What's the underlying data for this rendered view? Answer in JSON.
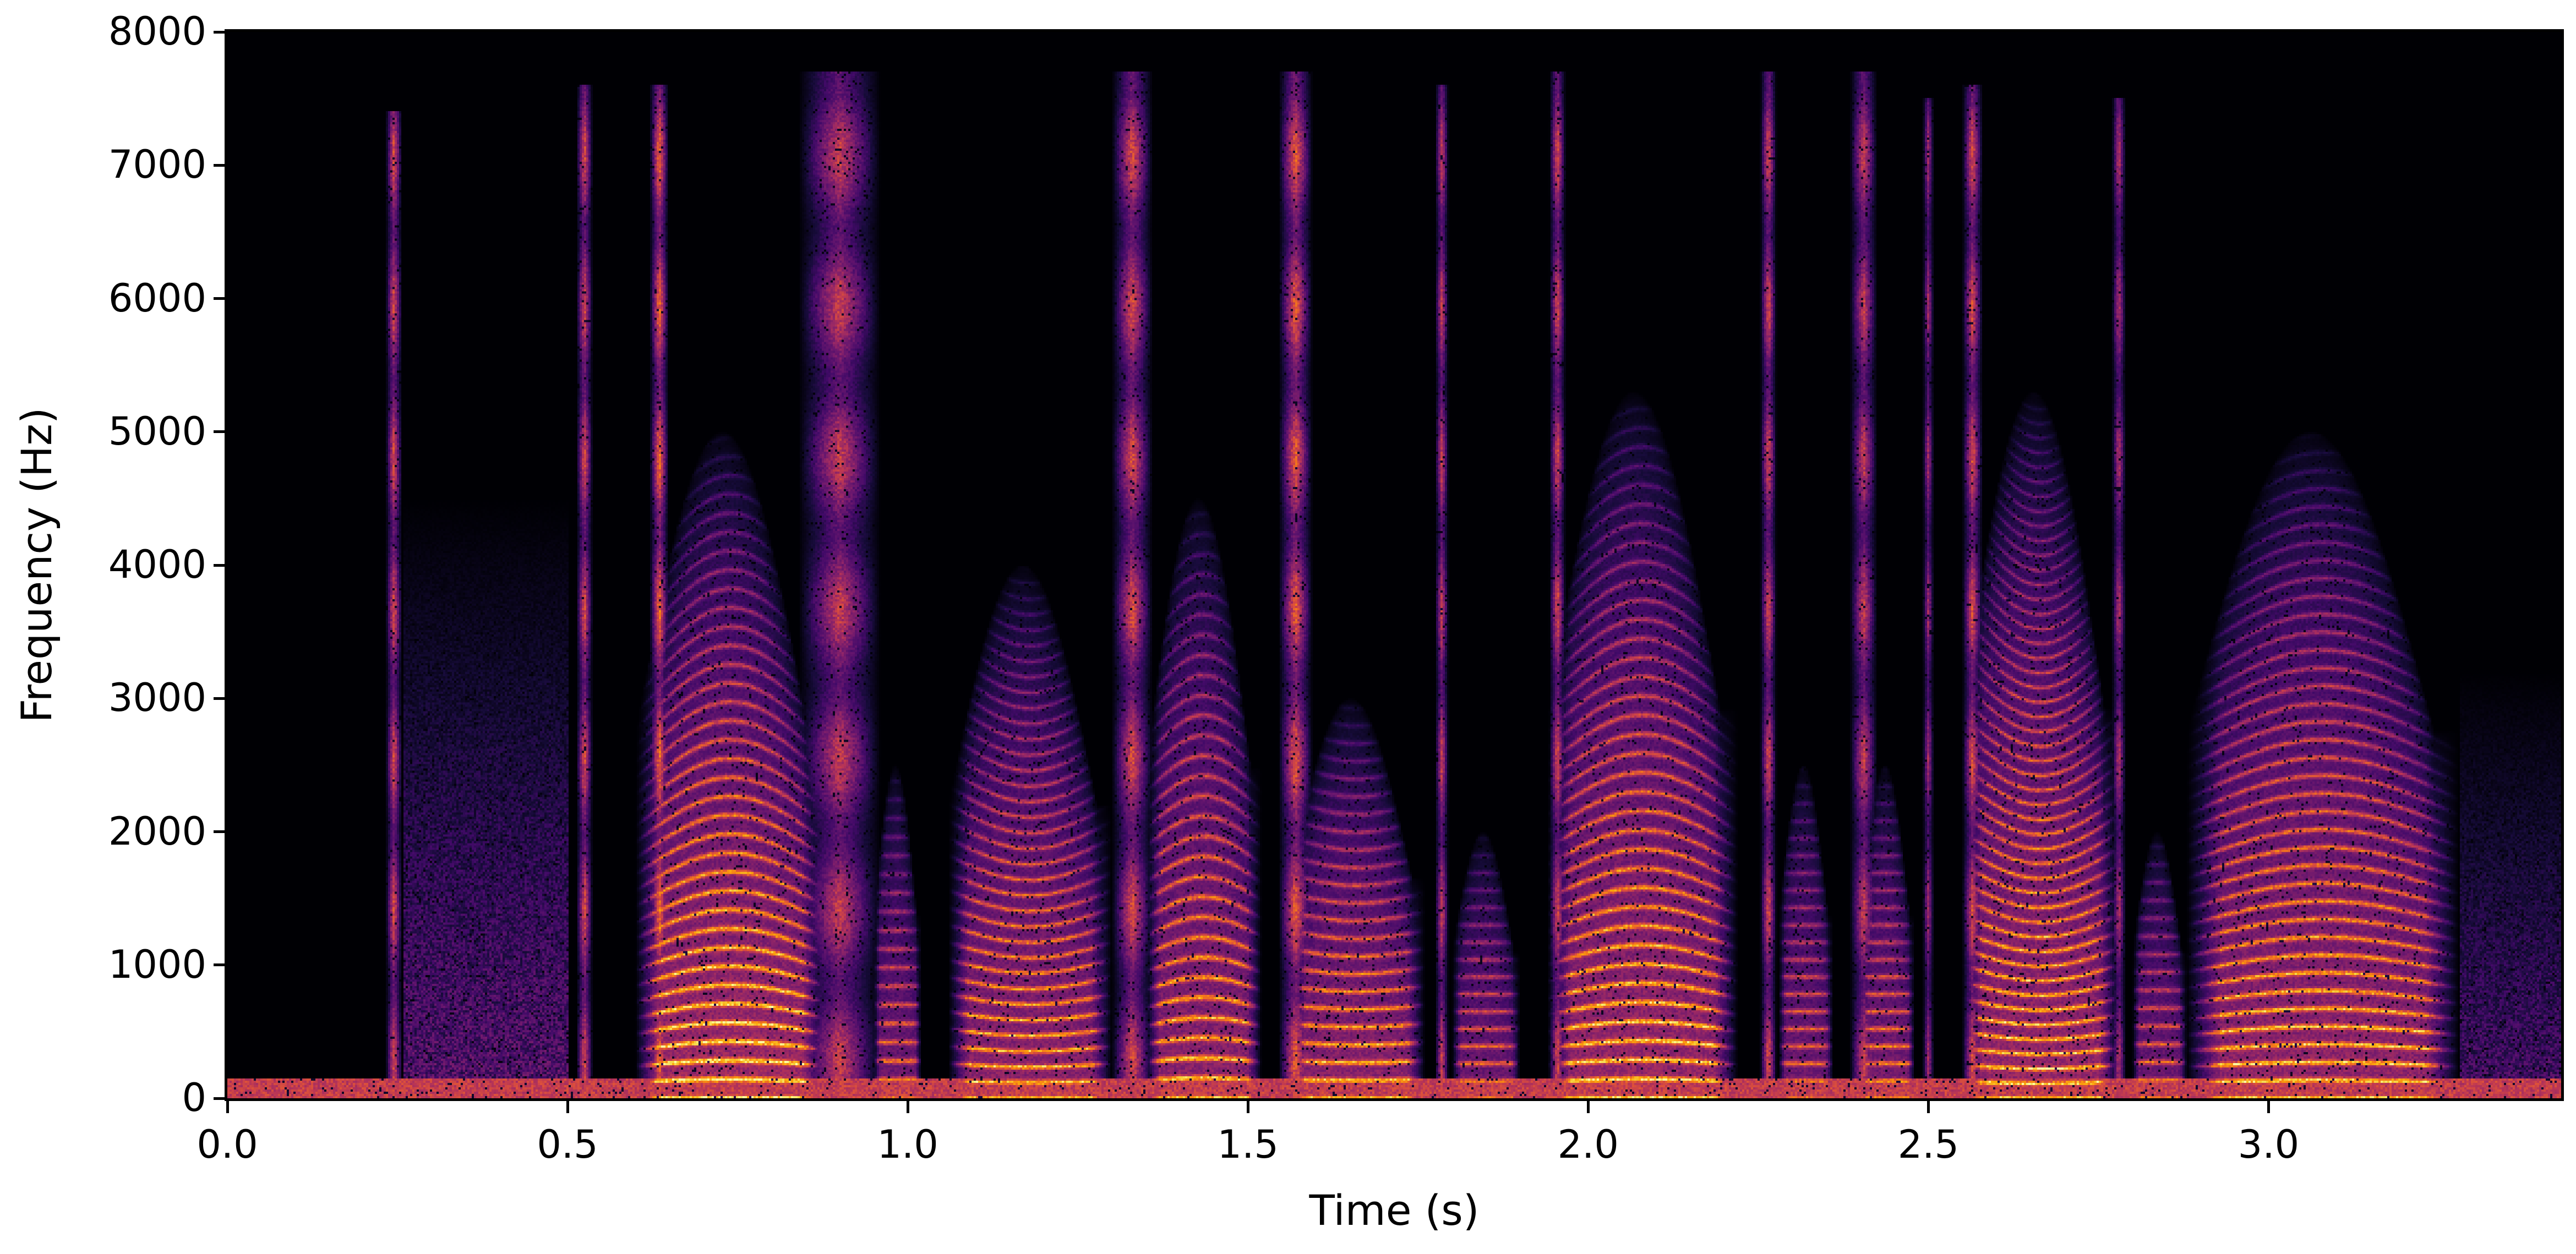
{
  "figure": {
    "xlabel": "Time (s)",
    "ylabel": "Frequency (Hz)"
  },
  "axes": {
    "x_ticks": [
      {
        "value": 0.0,
        "label": "0.0"
      },
      {
        "value": 0.5,
        "label": "0.5"
      },
      {
        "value": 1.0,
        "label": "1.0"
      },
      {
        "value": 1.5,
        "label": "1.5"
      },
      {
        "value": 2.0,
        "label": "2.0"
      },
      {
        "value": 2.5,
        "label": "2.5"
      },
      {
        "value": 3.0,
        "label": "3.0"
      }
    ],
    "y_ticks": [
      {
        "value": 0,
        "label": "0"
      },
      {
        "value": 1000,
        "label": "1000"
      },
      {
        "value": 2000,
        "label": "2000"
      },
      {
        "value": 3000,
        "label": "3000"
      },
      {
        "value": 4000,
        "label": "4000"
      },
      {
        "value": 5000,
        "label": "5000"
      },
      {
        "value": 6000,
        "label": "6000"
      },
      {
        "value": 7000,
        "label": "7000"
      },
      {
        "value": 8000,
        "label": "8000"
      }
    ]
  },
  "chart_data": {
    "type": "heatmap",
    "title": "",
    "xlabel": "Time (s)",
    "ylabel": "Frequency (Hz)",
    "xlim": [
      0.0,
      3.43
    ],
    "ylim": [
      0,
      8000
    ],
    "colormap": "inferno",
    "grid": false,
    "legend": null,
    "colorbar": false,
    "x_ticks": [
      0.0,
      0.5,
      1.0,
      1.5,
      2.0,
      2.5,
      3.0
    ],
    "y_ticks": [
      0,
      1000,
      2000,
      3000,
      4000,
      5000,
      6000,
      7000,
      8000
    ],
    "description": "Speech spectrogram; voiced segments show harmonic stacks (bright yellow/orange low harmonics), fricatives and plosive bursts show vertical broadband streaks up to ~7700 Hz, silence is black.",
    "low_freq_band": {
      "freq_max": 150,
      "intensity": 0.55
    },
    "voiced_segments": [
      {
        "t_start": 0.6,
        "t_end": 0.88,
        "f0": 120,
        "f_max": 5000,
        "intensity": 0.95,
        "pitch_bend": 0.18
      },
      {
        "t_start": 0.95,
        "t_end": 1.02,
        "f0": 140,
        "f_max": 2500,
        "intensity": 0.7,
        "pitch_bend": 0.0
      },
      {
        "t_start": 1.06,
        "t_end": 1.3,
        "f0": 130,
        "f_max": 4000,
        "intensity": 0.85,
        "pitch_bend": -0.1
      },
      {
        "t_start": 1.35,
        "t_end": 1.52,
        "f0": 135,
        "f_max": 4500,
        "intensity": 0.85,
        "pitch_bend": 0.12
      },
      {
        "t_start": 1.56,
        "t_end": 1.76,
        "f0": 140,
        "f_max": 3000,
        "intensity": 0.85,
        "pitch_bend": -0.05
      },
      {
        "t_start": 1.8,
        "t_end": 1.9,
        "f0": 130,
        "f_max": 2000,
        "intensity": 0.7,
        "pitch_bend": 0.0
      },
      {
        "t_start": 1.94,
        "t_end": 2.22,
        "f0": 125,
        "f_max": 5300,
        "intensity": 0.9,
        "pitch_bend": 0.15
      },
      {
        "t_start": 2.28,
        "t_end": 2.36,
        "f0": 130,
        "f_max": 2500,
        "intensity": 0.7,
        "pitch_bend": 0.0
      },
      {
        "t_start": 2.4,
        "t_end": 2.48,
        "f0": 130,
        "f_max": 2500,
        "intensity": 0.75,
        "pitch_bend": 0.0
      },
      {
        "t_start": 2.55,
        "t_end": 2.78,
        "f0": 125,
        "f_max": 5300,
        "intensity": 0.9,
        "pitch_bend": -0.12
      },
      {
        "t_start": 2.8,
        "t_end": 2.88,
        "f0": 135,
        "f_max": 2000,
        "intensity": 0.7,
        "pitch_bend": 0.0
      },
      {
        "t_start": 2.88,
        "t_end": 3.28,
        "f0": 118,
        "f_max": 5000,
        "intensity": 0.88,
        "pitch_bend": 0.14
      }
    ],
    "broadband_streaks": [
      {
        "t": 0.245,
        "f_max": 7400,
        "width": 0.012,
        "intensity": 0.6
      },
      {
        "t": 0.525,
        "f_max": 7600,
        "width": 0.012,
        "intensity": 0.6
      },
      {
        "t": 0.635,
        "f_max": 7600,
        "width": 0.014,
        "intensity": 0.7
      },
      {
        "t": 0.9,
        "f_max": 7700,
        "width": 0.06,
        "intensity": 0.55
      },
      {
        "t": 1.33,
        "f_max": 7700,
        "width": 0.03,
        "intensity": 0.6
      },
      {
        "t": 1.57,
        "f_max": 7700,
        "width": 0.025,
        "intensity": 0.65
      },
      {
        "t": 1.785,
        "f_max": 7600,
        "width": 0.01,
        "intensity": 0.55
      },
      {
        "t": 1.955,
        "f_max": 7700,
        "width": 0.012,
        "intensity": 0.6
      },
      {
        "t": 2.265,
        "f_max": 7700,
        "width": 0.012,
        "intensity": 0.6
      },
      {
        "t": 2.405,
        "f_max": 7700,
        "width": 0.02,
        "intensity": 0.55
      },
      {
        "t": 2.5,
        "f_max": 7500,
        "width": 0.008,
        "intensity": 0.45
      },
      {
        "t": 2.565,
        "f_max": 7600,
        "width": 0.015,
        "intensity": 0.6
      },
      {
        "t": 2.78,
        "f_max": 7500,
        "width": 0.01,
        "intensity": 0.5
      }
    ],
    "noise_regions": [
      {
        "t_start": 0.26,
        "t_end": 0.5,
        "f_max": 4500,
        "intensity": 0.3
      },
      {
        "t_start": 3.28,
        "t_end": 3.43,
        "f_max": 3200,
        "intensity": 0.25
      }
    ]
  }
}
